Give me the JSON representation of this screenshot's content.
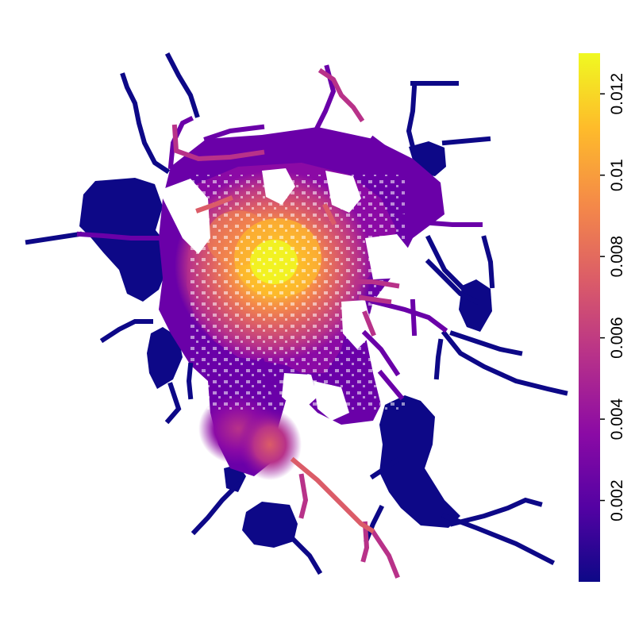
{
  "map": {
    "type": "raster-density",
    "colormap": "plasma",
    "color_stops": [
      "#0D0887",
      "#5302A3",
      "#8B0AA5",
      "#B83289",
      "#DB5C68",
      "#F48849",
      "#FEBC2A",
      "#F0F921"
    ],
    "background": "#ffffff"
  },
  "legend": {
    "range": [
      0,
      0.013
    ],
    "ticks": [
      {
        "value": 0.002,
        "label": "0.002"
      },
      {
        "value": 0.004,
        "label": "0.004"
      },
      {
        "value": 0.006,
        "label": "0.006"
      },
      {
        "value": 0.008,
        "label": "0.008"
      },
      {
        "value": 0.01,
        "label": "0.01"
      },
      {
        "value": 0.012,
        "label": "0.012"
      }
    ]
  }
}
